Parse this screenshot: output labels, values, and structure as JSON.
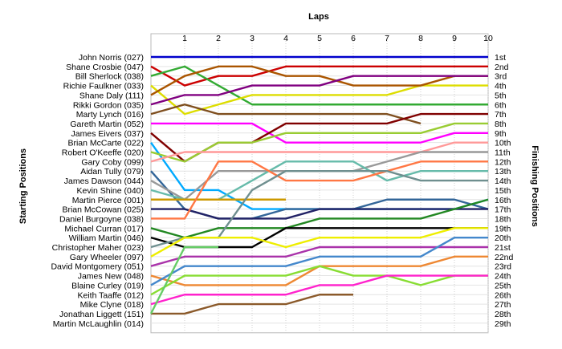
{
  "chart_data": {
    "type": "line",
    "title": "Laps",
    "ylabel_left": "Starting Positions",
    "ylabel_right": "Finishing Positions",
    "x_ticks": [
      1,
      2,
      3,
      4,
      5,
      6,
      7,
      8,
      9,
      10
    ],
    "drivers": [
      "John Norris (027)",
      "Shane Crosbie (047)",
      "Bill Sherlock (038)",
      "Richie Faulkner (033)",
      "Shane Daly (111)",
      "Rikki Gordon (035)",
      "Marty Lynch (016)",
      "Gareth Martin (052)",
      "James Eivers (037)",
      "Brian McCarte (022)",
      "Robert O'Keeffe (020)",
      "Gary Coby (099)",
      "Aidan Tully (079)",
      "James Dawson (044)",
      "Kevin Shine (040)",
      "Martin Pierce (001)",
      "Brian McCowan (025)",
      "Daniel Burgoyne (038)",
      "Michael Curran (017)",
      "William Martin (046)",
      "Christopher Maher (023)",
      "Gary Wheeler (097)",
      "David Montgomery (051)",
      "James New (048)",
      "Blaine Curley (019)",
      "Keith Taaffe (012)",
      "Mike Clyne (018)",
      "Jonathan Liggett (151)",
      "Martin McLaughlin (014)"
    ],
    "finishing": [
      "1st",
      "2nd",
      "3rd",
      "4th",
      "5th",
      "6th",
      "7th",
      "8th",
      "9th",
      "10th",
      "11th",
      "12th",
      "13th",
      "14th",
      "15th",
      "16th",
      "17th",
      "18th",
      "19th",
      "20th",
      "21st",
      "22nd",
      "23rd",
      "24th",
      "25th",
      "26th",
      "27th",
      "28th",
      "29th"
    ],
    "series": [
      {
        "color": "#0000cc",
        "positions": [
          1,
          1,
          1,
          1,
          1,
          1,
          1,
          1,
          1,
          1,
          1
        ]
      },
      {
        "color": "#cc0000",
        "positions": [
          2,
          4,
          3,
          3,
          2,
          2,
          2,
          2,
          2,
          2,
          2
        ]
      },
      {
        "color": "#33aa33",
        "positions": [
          3,
          2,
          4,
          6,
          6,
          6,
          6,
          6,
          6,
          6,
          6
        ]
      },
      {
        "color": "#dddd00",
        "positions": [
          4,
          7,
          6,
          5,
          5,
          5,
          5,
          5,
          4,
          4,
          4
        ]
      },
      {
        "color": "#aa5500",
        "positions": [
          5,
          3,
          2,
          2,
          3,
          3,
          4,
          4,
          4,
          3,
          3
        ]
      },
      {
        "color": "#800080",
        "positions": [
          6,
          5,
          5,
          4,
          4,
          4,
          3,
          3,
          3,
          3,
          3
        ]
      },
      {
        "color": "#7f4f1f",
        "positions": [
          7,
          6,
          7,
          7,
          7,
          7,
          7,
          7,
          8
        ]
      },
      {
        "color": "#ff00ff",
        "positions": [
          8,
          8,
          8,
          8,
          10,
          10,
          10,
          10,
          10,
          9,
          9
        ]
      },
      {
        "color": "#800000",
        "positions": [
          9,
          12,
          10,
          10,
          8,
          8,
          8,
          8,
          7,
          7,
          7
        ]
      },
      {
        "color": "#00aaff",
        "positions": [
          10,
          15,
          15,
          17,
          17,
          17,
          17,
          17,
          17,
          17,
          16
        ]
      },
      {
        "color": "#99cc33",
        "positions": [
          11,
          12,
          10,
          10,
          9,
          9,
          9,
          9,
          9,
          8,
          8
        ]
      },
      {
        "color": "#ff9999",
        "positions": [
          12,
          11,
          11,
          11,
          11,
          11,
          11,
          11,
          11,
          10,
          10
        ]
      },
      {
        "color": "#336699",
        "positions": [
          13,
          17,
          18,
          18,
          17,
          17,
          17,
          16,
          16,
          16,
          17
        ]
      },
      {
        "color": "#999999",
        "positions": [
          14,
          16,
          13,
          13,
          13,
          13,
          13,
          12,
          11,
          11,
          11
        ]
      },
      {
        "color": "#66bbaa",
        "positions": [
          15,
          16,
          16,
          14,
          12,
          12,
          12,
          14,
          13,
          13,
          13
        ]
      },
      {
        "color": "#cc9900",
        "positions": [
          16,
          16,
          16,
          16,
          16
        ]
      },
      {
        "color": "#222266",
        "positions": [
          17,
          17,
          18,
          18,
          18,
          17,
          17,
          17,
          17,
          17,
          17
        ]
      },
      {
        "color": "#ff7744",
        "positions": [
          18,
          18,
          12,
          12,
          14,
          14,
          14,
          13,
          12,
          12,
          12
        ]
      },
      {
        "color": "#228822",
        "positions": [
          19,
          20,
          19,
          19,
          19,
          18,
          18,
          18,
          18,
          17,
          16
        ]
      },
      {
        "color": "#000000",
        "positions": [
          20,
          21,
          21,
          21,
          19,
          19,
          19,
          19,
          19,
          19,
          19
        ]
      },
      {
        "color": "#6f8f8f",
        "positions": [
          21,
          20,
          20,
          15,
          13,
          13,
          13,
          13,
          14,
          14,
          14
        ]
      },
      {
        "color": "#eeee00",
        "positions": [
          22,
          20,
          20,
          20,
          21,
          20,
          20,
          20,
          20,
          19,
          19
        ]
      },
      {
        "color": "#aa33aa",
        "positions": [
          23,
          22,
          22,
          22,
          22,
          21,
          21,
          21,
          21,
          21,
          21
        ]
      },
      {
        "color": "#ee8833",
        "positions": [
          24,
          25,
          25,
          25,
          25,
          23,
          23,
          23,
          23,
          22,
          22
        ]
      },
      {
        "color": "#4488cc",
        "positions": [
          25,
          23,
          23,
          23,
          23,
          22,
          22,
          22,
          22,
          20,
          20
        ]
      },
      {
        "color": "#88dd33",
        "positions": [
          26,
          24,
          24,
          24,
          24,
          23,
          24,
          24,
          25,
          24,
          24
        ]
      },
      {
        "color": "#ff22cc",
        "positions": [
          27,
          26,
          26,
          26,
          26,
          25,
          25,
          24,
          24,
          24,
          24
        ]
      },
      {
        "color": "#8b5a2b",
        "positions": [
          28,
          28,
          27,
          27,
          27,
          26,
          26
        ]
      },
      {
        "color": "#66cc66",
        "positions": [
          28,
          21,
          21
        ]
      }
    ]
  }
}
